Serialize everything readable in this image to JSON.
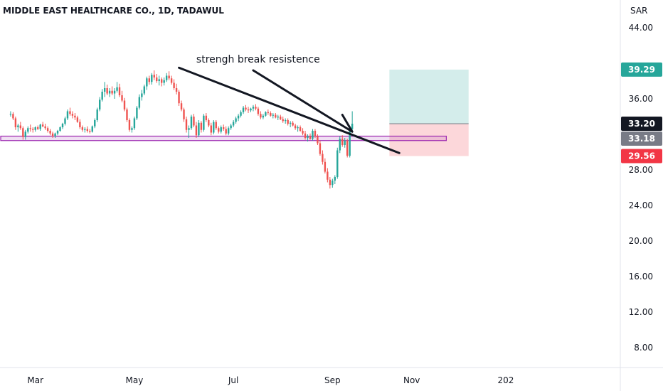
{
  "chart_data": {
    "type": "candlestick",
    "title": "MIDDLE EAST HEALTHCARE CO., 1D, TADAWUL",
    "currency": "SAR",
    "y_ticks": [
      8,
      12,
      16,
      20,
      24,
      28,
      36,
      44
    ],
    "y_tick_labels": [
      "8.00",
      "12.00",
      "16.00",
      "20.00",
      "24.00",
      "28.00",
      "36.00",
      "44.00"
    ],
    "ylim": [
      5,
      47
    ],
    "x_tick_labels": [
      "Mar",
      "May",
      "Jul",
      "Sep",
      "Nov",
      "202"
    ],
    "x_tick_positions": [
      10,
      50,
      90,
      130,
      162,
      200
    ],
    "xlim": [
      -4,
      206
    ],
    "grid": false,
    "price_labels": [
      {
        "value": 39.29,
        "text": "39.29",
        "color": "#26a69a"
      },
      {
        "value": 33.2,
        "text": "33.20",
        "color": "#131722"
      },
      {
        "value": 33.18,
        "text": "33.18",
        "color": "#787b86"
      },
      {
        "value": 29.56,
        "text": "29.56",
        "color": "#f23645"
      }
    ],
    "support_zone": {
      "x_start": -4,
      "x_end": 176,
      "y_low": 31.3,
      "y_high": 31.8,
      "color": "#9c27b0"
    },
    "trendline": {
      "x1": 68,
      "y1": 39.5,
      "x2": 157,
      "y2": 29.9
    },
    "arrow": {
      "points": [
        [
          98,
          39.2
        ],
        [
          138,
          32.3
        ],
        [
          134,
          34.2
        ]
      ]
    },
    "annotation": {
      "text": "strengh break resistence",
      "x": 75,
      "y": 40.1
    },
    "target_zone": {
      "x_start": 153,
      "x_end": 185,
      "entry": 33.2,
      "target": 39.29,
      "stop": 29.56,
      "profit_color": "#26a69a",
      "loss_color": "#f23645"
    },
    "candles": [
      [
        34.3,
        34.6,
        34.0,
        34.3
      ],
      [
        34.3,
        34.5,
        33.6,
        33.8
      ],
      [
        33.8,
        34.0,
        32.5,
        32.8
      ],
      [
        32.8,
        33.2,
        32.3,
        33.0
      ],
      [
        33.0,
        33.4,
        32.5,
        32.7
      ],
      [
        32.7,
        32.9,
        31.4,
        31.7
      ],
      [
        31.7,
        32.5,
        31.4,
        32.3
      ],
      [
        32.3,
        32.9,
        32.1,
        32.7
      ],
      [
        32.7,
        33.1,
        32.3,
        32.6
      ],
      [
        32.6,
        32.8,
        32.2,
        32.5
      ],
      [
        32.5,
        32.9,
        32.3,
        32.8
      ],
      [
        32.8,
        33.0,
        32.5,
        32.6
      ],
      [
        32.6,
        33.2,
        32.4,
        33.1
      ],
      [
        33.1,
        33.4,
        32.8,
        32.9
      ],
      [
        32.9,
        33.2,
        32.5,
        32.7
      ],
      [
        32.7,
        32.9,
        32.2,
        32.4
      ],
      [
        32.4,
        32.6,
        31.9,
        32.1
      ],
      [
        32.1,
        32.3,
        31.6,
        31.8
      ],
      [
        31.8,
        32.2,
        31.6,
        32.1
      ],
      [
        32.1,
        32.5,
        31.9,
        32.4
      ],
      [
        32.4,
        32.9,
        32.3,
        32.8
      ],
      [
        32.8,
        33.3,
        32.6,
        33.2
      ],
      [
        33.2,
        34.0,
        33.0,
        33.8
      ],
      [
        33.8,
        34.8,
        33.6,
        34.6
      ],
      [
        34.6,
        35.0,
        34.1,
        34.3
      ],
      [
        34.3,
        34.6,
        33.8,
        34.1
      ],
      [
        34.1,
        34.4,
        33.6,
        33.9
      ],
      [
        33.9,
        34.1,
        33.3,
        33.4
      ],
      [
        33.4,
        33.7,
        32.6,
        32.8
      ],
      [
        32.8,
        33.0,
        32.3,
        32.5
      ],
      [
        32.5,
        32.8,
        32.2,
        32.6
      ],
      [
        32.6,
        32.9,
        32.2,
        32.4
      ],
      [
        32.4,
        32.6,
        32.1,
        32.3
      ],
      [
        32.3,
        33.0,
        32.2,
        32.9
      ],
      [
        32.9,
        33.8,
        32.7,
        33.6
      ],
      [
        33.6,
        35.0,
        33.4,
        34.8
      ],
      [
        34.8,
        36.2,
        34.6,
        35.9
      ],
      [
        35.9,
        37.1,
        35.7,
        36.8
      ],
      [
        36.8,
        37.9,
        36.2,
        37.2
      ],
      [
        37.2,
        37.6,
        36.4,
        36.6
      ],
      [
        36.6,
        37.2,
        36.2,
        36.9
      ],
      [
        36.9,
        37.4,
        36.4,
        36.6
      ],
      [
        36.6,
        37.2,
        36.0,
        36.9
      ],
      [
        36.9,
        37.9,
        36.7,
        37.3
      ],
      [
        37.3,
        37.7,
        36.2,
        36.4
      ],
      [
        36.4,
        36.9,
        35.6,
        35.8
      ],
      [
        35.8,
        36.1,
        34.6,
        34.8
      ],
      [
        34.8,
        35.0,
        33.4,
        33.6
      ],
      [
        33.6,
        33.8,
        32.3,
        32.5
      ],
      [
        32.5,
        32.9,
        32.2,
        32.7
      ],
      [
        32.7,
        34.0,
        32.5,
        33.8
      ],
      [
        33.8,
        35.2,
        33.6,
        35.0
      ],
      [
        35.0,
        36.5,
        34.8,
        36.2
      ],
      [
        36.2,
        37.0,
        35.8,
        36.6
      ],
      [
        36.6,
        37.6,
        36.4,
        37.4
      ],
      [
        37.4,
        38.5,
        37.0,
        38.3
      ],
      [
        38.3,
        38.6,
        37.6,
        37.9
      ],
      [
        37.9,
        38.9,
        37.6,
        38.7
      ],
      [
        38.7,
        39.2,
        38.1,
        38.4
      ],
      [
        38.4,
        38.8,
        37.8,
        38.0
      ],
      [
        38.0,
        38.6,
        37.5,
        38.2
      ],
      [
        38.2,
        38.4,
        37.4,
        37.8
      ],
      [
        37.8,
        38.4,
        37.5,
        38.1
      ],
      [
        38.1,
        38.9,
        37.9,
        38.6
      ],
      [
        38.6,
        39.1,
        38.1,
        38.3
      ],
      [
        38.3,
        38.6,
        37.6,
        37.8
      ],
      [
        37.8,
        38.2,
        37.0,
        37.2
      ],
      [
        37.2,
        37.7,
        36.5,
        36.8
      ],
      [
        36.8,
        37.0,
        35.2,
        35.5
      ],
      [
        35.5,
        35.8,
        34.6,
        34.8
      ],
      [
        34.8,
        35.0,
        33.4,
        33.7
      ],
      [
        33.7,
        34.0,
        32.2,
        32.5
      ],
      [
        32.5,
        33.0,
        31.6,
        32.7
      ],
      [
        32.7,
        34.2,
        32.5,
        34.0
      ],
      [
        34.0,
        34.3,
        32.8,
        33.0
      ],
      [
        33.0,
        33.4,
        31.6,
        31.9
      ],
      [
        31.9,
        33.6,
        31.7,
        33.3
      ],
      [
        33.3,
        33.5,
        32.2,
        32.5
      ],
      [
        32.5,
        34.3,
        32.3,
        34.1
      ],
      [
        34.1,
        34.4,
        33.4,
        33.6
      ],
      [
        33.6,
        33.8,
        32.8,
        33.0
      ],
      [
        33.0,
        33.3,
        31.9,
        32.2
      ],
      [
        32.2,
        33.6,
        32.0,
        33.4
      ],
      [
        33.4,
        33.6,
        32.5,
        32.7
      ],
      [
        32.7,
        32.9,
        32.1,
        32.3
      ],
      [
        32.3,
        33.0,
        32.1,
        32.8
      ],
      [
        32.8,
        33.1,
        32.4,
        32.6
      ],
      [
        32.6,
        32.9,
        31.9,
        32.1
      ],
      [
        32.1,
        32.9,
        31.9,
        32.7
      ],
      [
        32.7,
        33.2,
        32.5,
        33.0
      ],
      [
        33.0,
        33.6,
        32.8,
        33.4
      ],
      [
        33.4,
        34.0,
        33.2,
        33.8
      ],
      [
        33.8,
        34.3,
        33.5,
        34.1
      ],
      [
        34.1,
        34.7,
        33.9,
        34.5
      ],
      [
        34.5,
        35.2,
        34.3,
        35.0
      ],
      [
        35.0,
        35.3,
        34.6,
        34.8
      ],
      [
        34.8,
        35.1,
        34.4,
        34.7
      ],
      [
        34.7,
        35.0,
        34.5,
        34.9
      ],
      [
        34.9,
        35.3,
        34.6,
        35.1
      ],
      [
        35.1,
        35.4,
        34.7,
        34.9
      ],
      [
        34.9,
        35.1,
        34.1,
        34.3
      ],
      [
        34.3,
        34.6,
        33.7,
        33.9
      ],
      [
        33.9,
        34.3,
        33.7,
        34.1
      ],
      [
        34.1,
        34.6,
        34.0,
        34.5
      ],
      [
        34.5,
        34.8,
        34.2,
        34.4
      ],
      [
        34.4,
        34.6,
        34.0,
        34.1
      ],
      [
        34.1,
        34.4,
        33.8,
        34.2
      ],
      [
        34.2,
        34.4,
        33.8,
        33.9
      ],
      [
        33.9,
        34.2,
        33.6,
        34.0
      ],
      [
        34.0,
        34.2,
        33.6,
        33.7
      ],
      [
        33.7,
        34.0,
        33.3,
        33.5
      ],
      [
        33.5,
        33.8,
        33.2,
        33.6
      ],
      [
        33.6,
        33.8,
        33.0,
        33.2
      ],
      [
        33.2,
        33.5,
        32.8,
        33.3
      ],
      [
        33.3,
        33.5,
        32.9,
        33.0
      ],
      [
        33.0,
        33.2,
        32.5,
        32.7
      ],
      [
        32.7,
        33.0,
        32.3,
        32.8
      ],
      [
        32.8,
        33.0,
        32.3,
        32.4
      ],
      [
        32.4,
        32.7,
        31.9,
        32.1
      ],
      [
        32.1,
        32.4,
        31.4,
        31.6
      ],
      [
        31.6,
        32.0,
        31.2,
        31.8
      ],
      [
        31.8,
        32.1,
        31.4,
        31.5
      ],
      [
        31.5,
        32.6,
        31.3,
        32.4
      ],
      [
        32.4,
        32.6,
        31.6,
        31.8
      ],
      [
        31.8,
        32.0,
        30.8,
        31.0
      ],
      [
        31.0,
        31.3,
        29.6,
        29.8
      ],
      [
        29.8,
        30.2,
        28.6,
        28.9
      ],
      [
        28.9,
        29.3,
        27.6,
        27.8
      ],
      [
        27.8,
        28.2,
        26.6,
        26.9
      ],
      [
        26.9,
        27.2,
        25.9,
        26.3
      ],
      [
        26.3,
        27.0,
        26.0,
        26.8
      ],
      [
        26.8,
        27.4,
        26.4,
        27.2
      ],
      [
        27.2,
        30.5,
        27.0,
        30.2
      ],
      [
        30.2,
        31.8,
        29.9,
        31.5
      ],
      [
        31.5,
        31.9,
        30.6,
        30.8
      ],
      [
        30.8,
        31.6,
        30.5,
        31.3
      ],
      [
        31.3,
        31.5,
        29.4,
        29.6
      ],
      [
        29.6,
        32.8,
        29.4,
        32.6
      ],
      [
        32.6,
        34.6,
        32.4,
        33.2
      ]
    ]
  }
}
